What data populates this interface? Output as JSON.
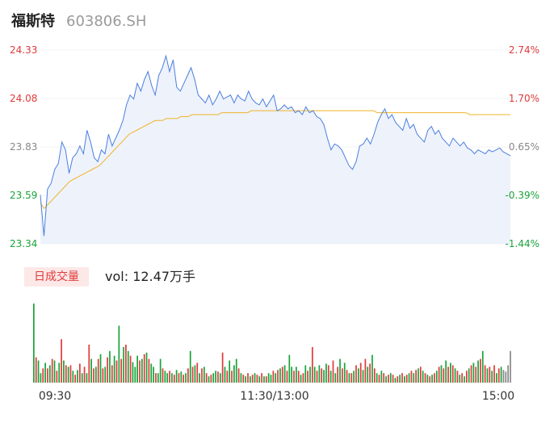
{
  "header": {
    "name": "福斯特",
    "code": "603806.SH"
  },
  "volume_panel": {
    "tab_label": "日成交量",
    "vol_prefix": "vol: ",
    "vol_value": "12.47万手"
  },
  "colors": {
    "price": "#4a7fe0",
    "avg": "#f0b429",
    "up": "#e03a3a",
    "down": "#1aa33a",
    "neutral": "#888888",
    "area_fill": "#eef2fb"
  },
  "chart_data": [
    {
      "type": "line",
      "title": "",
      "ylim": [
        23.34,
        24.33
      ],
      "y_ticks_left": [
        "24.33",
        "24.08",
        "23.83",
        "23.59",
        "23.34"
      ],
      "y_ticks_right": [
        "2.74%",
        "1.70%",
        "0.65%",
        "-0.39%",
        "-1.44%"
      ],
      "x_ticks": [
        "09:30",
        "11:30/13:00",
        "15:00"
      ],
      "series": [
        {
          "role": "price",
          "values": [
            23.59,
            23.38,
            23.62,
            23.65,
            23.72,
            23.75,
            23.86,
            23.82,
            23.7,
            23.78,
            23.8,
            23.84,
            23.8,
            23.92,
            23.86,
            23.78,
            23.76,
            23.82,
            23.8,
            23.9,
            23.84,
            23.88,
            23.92,
            23.97,
            24.05,
            24.1,
            24.08,
            24.16,
            24.12,
            24.18,
            24.22,
            24.15,
            24.1,
            24.2,
            24.24,
            24.3,
            24.22,
            24.28,
            24.14,
            24.12,
            24.16,
            24.2,
            24.24,
            24.18,
            24.1,
            24.08,
            24.06,
            24.1,
            24.05,
            24.08,
            24.12,
            24.08,
            24.09,
            24.1,
            24.06,
            24.1,
            24.08,
            24.07,
            24.12,
            24.08,
            24.06,
            24.05,
            24.08,
            24.04,
            24.07,
            24.1,
            24.02,
            24.03,
            24.05,
            24.03,
            24.04,
            24.01,
            24.02,
            24.0,
            24.04,
            24.01,
            24.02,
            23.99,
            23.98,
            23.95,
            23.88,
            23.82,
            23.85,
            23.84,
            23.82,
            23.78,
            23.74,
            23.72,
            23.76,
            23.84,
            23.85,
            23.88,
            23.85,
            23.9,
            23.96,
            24.0,
            24.03,
            23.98,
            24.0,
            23.96,
            23.94,
            23.92,
            23.98,
            23.93,
            23.95,
            23.9,
            23.88,
            23.86,
            23.92,
            23.94,
            23.9,
            23.92,
            23.88,
            23.86,
            23.84,
            23.88,
            23.86,
            23.84,
            23.86,
            23.83,
            23.82,
            23.8,
            23.82,
            23.81,
            23.8,
            23.82,
            23.81,
            23.82,
            23.83,
            23.81,
            23.8,
            23.79
          ]
        },
        {
          "role": "average",
          "values": [
            23.55,
            23.52,
            23.54,
            23.56,
            23.58,
            23.6,
            23.62,
            23.64,
            23.66,
            23.67,
            23.68,
            23.69,
            23.7,
            23.71,
            23.72,
            23.73,
            23.74,
            23.76,
            23.78,
            23.8,
            23.82,
            23.84,
            23.86,
            23.88,
            23.9,
            23.91,
            23.92,
            23.93,
            23.94,
            23.95,
            23.96,
            23.97,
            23.97,
            23.97,
            23.98,
            23.98,
            23.98,
            23.98,
            23.99,
            23.99,
            23.99,
            24.0,
            24.0,
            24.0,
            24.0,
            24.0,
            24.0,
            24.0,
            24.0,
            24.01,
            24.01,
            24.01,
            24.01,
            24.01,
            24.01,
            24.01,
            24.01,
            24.02,
            24.02,
            24.02,
            24.02,
            24.02,
            24.02,
            24.02,
            24.02,
            24.02,
            24.02,
            24.02,
            24.02,
            24.02,
            24.02,
            24.02,
            24.02,
            24.02,
            24.02,
            24.02,
            24.02,
            24.02,
            24.02,
            24.02,
            24.02,
            24.02,
            24.02,
            24.02,
            24.02,
            24.02,
            24.02,
            24.02,
            24.02,
            24.02,
            24.02,
            24.01,
            24.01,
            24.01,
            24.01,
            24.01,
            24.01,
            24.01,
            24.01,
            24.01,
            24.01,
            24.01,
            24.01,
            24.01,
            24.01,
            24.01,
            24.01,
            24.01,
            24.01,
            24.01,
            24.01,
            24.01,
            24.01,
            24.01,
            24.01,
            24.01,
            24.0,
            24.0,
            24.0,
            24.0,
            24.0,
            24.0,
            24.0,
            24.0,
            24.0,
            24.0,
            24.0,
            24.0
          ]
        }
      ]
    },
    {
      "type": "bar",
      "title": "",
      "ylim": [
        0,
        100
      ],
      "values": [
        100,
        32,
        28,
        12,
        18,
        25,
        18,
        22,
        30,
        28,
        15,
        25,
        55,
        28,
        22,
        20,
        22,
        15,
        10,
        16,
        24,
        12,
        20,
        12,
        48,
        30,
        18,
        20,
        30,
        36,
        18,
        20,
        32,
        40,
        22,
        34,
        28,
        72,
        30,
        45,
        48,
        40,
        34,
        26,
        20,
        34,
        28,
        30,
        36,
        38,
        30,
        24,
        20,
        12,
        12,
        30,
        18,
        15,
        12,
        15,
        12,
        10,
        16,
        12,
        14,
        10,
        12,
        18,
        40,
        20,
        22,
        25,
        12,
        18,
        20,
        12,
        8,
        10,
        12,
        15,
        14,
        12,
        38,
        20,
        15,
        28,
        15,
        22,
        30,
        18,
        12,
        10,
        8,
        12,
        8,
        10,
        12,
        10,
        8,
        12,
        8,
        8,
        12,
        10,
        15,
        12,
        16,
        18,
        20,
        22,
        15,
        35,
        20,
        15,
        20,
        15,
        10,
        12,
        22,
        15,
        20,
        45,
        20,
        15,
        22,
        18,
        16,
        24,
        22,
        15,
        28,
        12,
        20,
        30,
        18,
        25,
        16,
        12,
        12,
        15,
        22,
        18,
        25,
        16,
        30,
        20,
        24,
        35,
        18,
        12,
        10,
        15,
        12,
        8,
        10,
        12,
        10,
        6,
        8,
        10,
        12,
        8,
        10,
        12,
        15,
        12,
        16,
        18,
        20,
        15,
        12,
        10,
        8,
        10,
        12,
        15,
        20,
        22,
        18,
        28,
        20,
        25,
        22,
        18,
        15,
        10,
        12,
        8,
        15,
        18,
        22,
        25,
        20,
        28,
        30,
        40,
        22,
        18,
        20,
        15,
        22,
        12,
        18,
        20,
        16,
        14,
        22,
        40
      ],
      "colors": [
        "down",
        "up",
        "down",
        "down",
        "up",
        "down",
        "up",
        "down",
        "up",
        "down",
        "up",
        "down",
        "up",
        "down",
        "up",
        "down",
        "up",
        "down",
        "up",
        "down",
        "up",
        "down",
        "up",
        "down",
        "up",
        "down",
        "up",
        "down",
        "up",
        "down",
        "up",
        "down",
        "up",
        "down",
        "up",
        "down",
        "up",
        "down",
        "up",
        "down",
        "up",
        "down",
        "up",
        "down",
        "down",
        "down",
        "up",
        "down",
        "up",
        "down",
        "up",
        "down",
        "down",
        "up",
        "down",
        "down",
        "up",
        "down",
        "down",
        "up",
        "down",
        "up",
        "down",
        "up",
        "down",
        "up",
        "down",
        "up",
        "down",
        "up",
        "down",
        "up",
        "down",
        "up",
        "down",
        "up",
        "down",
        "up",
        "down",
        "down",
        "up",
        "down",
        "up",
        "down",
        "up",
        "down",
        "up",
        "down",
        "down",
        "up",
        "down",
        "up",
        "down",
        "up",
        "down",
        "up",
        "down",
        "up",
        "down",
        "up",
        "down",
        "up",
        "down",
        "down",
        "up",
        "down",
        "up",
        "down",
        "up",
        "down",
        "up",
        "down",
        "down",
        "up",
        "down",
        "up",
        "down",
        "up",
        "down",
        "up",
        "down",
        "up",
        "down",
        "up",
        "down",
        "up",
        "down",
        "down",
        "up",
        "down",
        "up",
        "down",
        "up",
        "down",
        "up",
        "down",
        "up",
        "down",
        "up",
        "down",
        "up",
        "down",
        "up",
        "down",
        "up",
        "down",
        "up",
        "down",
        "up",
        "down",
        "up",
        "down",
        "up",
        "down",
        "up",
        "down",
        "up",
        "down",
        "up",
        "down",
        "up",
        "down",
        "up",
        "down",
        "up",
        "down",
        "up",
        "down",
        "up",
        "down",
        "up",
        "down",
        "up",
        "down",
        "up",
        "down",
        "up",
        "down",
        "up",
        "down",
        "up",
        "down",
        "up",
        "down",
        "up",
        "down",
        "up",
        "down",
        "up",
        "down",
        "up",
        "down",
        "up",
        "down",
        "up",
        "down",
        "up",
        "down",
        "up",
        "down",
        "up",
        "down",
        "up",
        "down",
        "neutral"
      ]
    }
  ]
}
